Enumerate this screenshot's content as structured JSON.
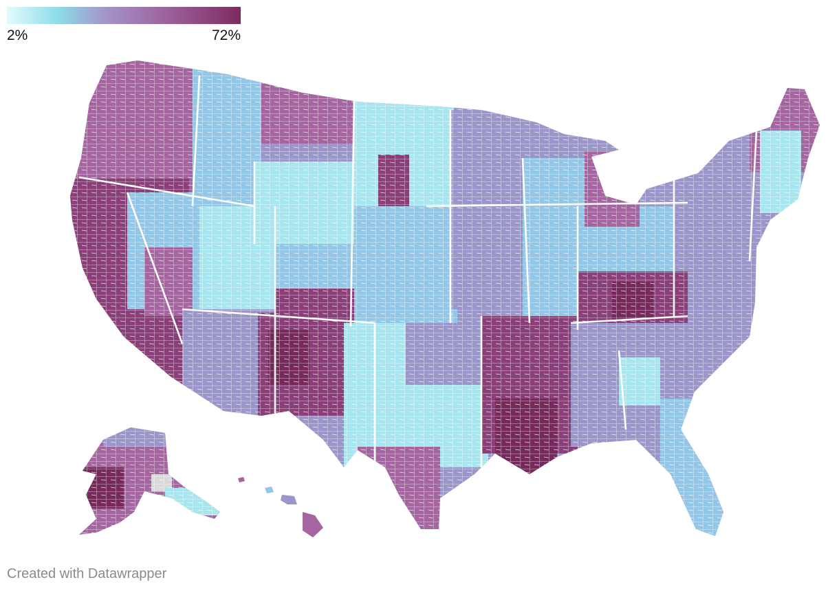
{
  "legend": {
    "min_label": "2%",
    "max_label": "72%",
    "gradient_stops": [
      "#e2fbfb",
      "#8ddce9",
      "#a594c9",
      "#9b5f9a",
      "#7d2b5e"
    ]
  },
  "colors": {
    "low": "#a7e6ef",
    "low_mid": "#92c7e8",
    "mid": "#9a96ca",
    "mid_high": "#a565a0",
    "high": "#8a3f78",
    "highest": "#76295a",
    "no_data": "#d9d9d9",
    "border": "#ffffff"
  },
  "attribution": "Created with Datawrapper"
}
